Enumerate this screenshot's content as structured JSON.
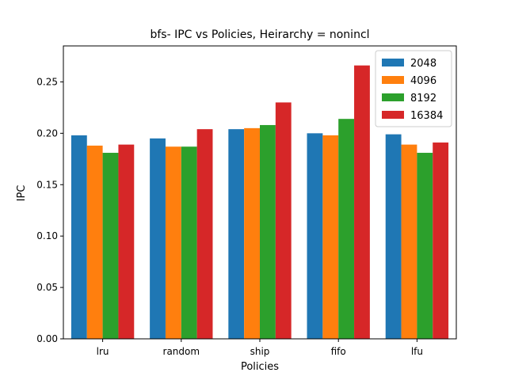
{
  "chart_data": {
    "type": "bar",
    "title": "bfs- IPC vs Policies, Heirarchy = nonincl",
    "xlabel": "Policies",
    "ylabel": "IPC",
    "categories": [
      "lru",
      "random",
      "ship",
      "fifo",
      "lfu"
    ],
    "ylim": [
      0,
      0.285
    ],
    "yticks": [
      0.0,
      0.05,
      0.1,
      0.15,
      0.2,
      0.25
    ],
    "ytick_labels": [
      "0.00",
      "0.05",
      "0.10",
      "0.15",
      "0.20",
      "0.25"
    ],
    "grid": false,
    "legend_position": "top-right",
    "series": [
      {
        "name": "2048",
        "color": "#1f77b4",
        "values": [
          0.198,
          0.195,
          0.204,
          0.2,
          0.199
        ]
      },
      {
        "name": "4096",
        "color": "#ff7f0e",
        "values": [
          0.188,
          0.187,
          0.205,
          0.198,
          0.189
        ]
      },
      {
        "name": "8192",
        "color": "#2ca02c",
        "values": [
          0.181,
          0.187,
          0.208,
          0.214,
          0.181
        ]
      },
      {
        "name": "16384",
        "color": "#d62728",
        "values": [
          0.189,
          0.204,
          0.23,
          0.266,
          0.191
        ]
      }
    ]
  }
}
